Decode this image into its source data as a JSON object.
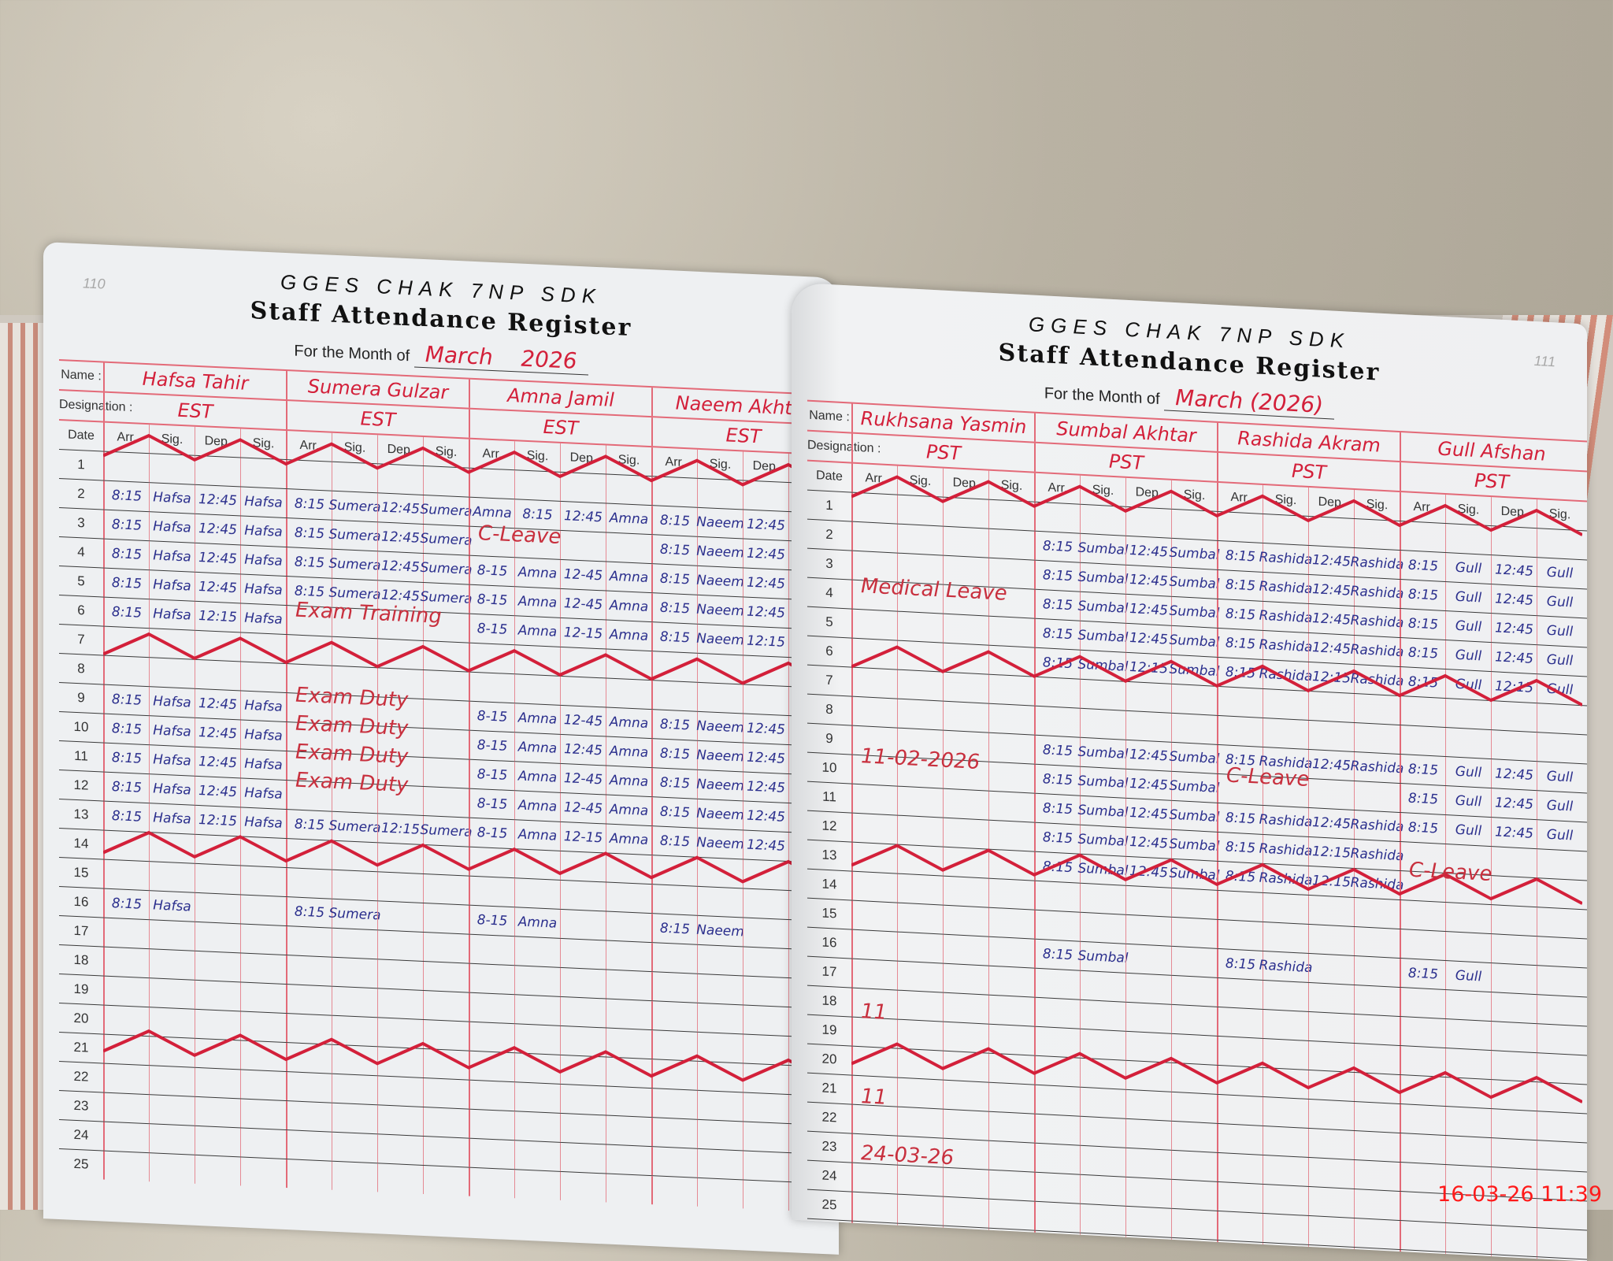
{
  "timestamp": "16-03-26  11:39",
  "pages": [
    {
      "page_number": "110",
      "school": "GGES CHAK 7NP SDK",
      "title": "Staff Attendance Register",
      "month_label": "For the Month of",
      "month": "March",
      "year": "2026",
      "name_label": "Name :",
      "designation_label": "Designation :",
      "date_label": "Date",
      "sub_headers": [
        "Arr.",
        "Sig.",
        "Dep.",
        "Sig."
      ],
      "staff": [
        {
          "name": "Hafsa Tahir",
          "designation": "EST"
        },
        {
          "name": "Sumera Gulzar",
          "designation": "EST"
        },
        {
          "name": "Amna Jamil",
          "designation": "EST"
        },
        {
          "name": "Naeem Akhtar",
          "designation": "EST"
        }
      ],
      "row_count": 25,
      "holiday_rows": [
        1,
        8,
        15,
        22
      ],
      "entries": [
        {
          "date": 2,
          "cells": [
            "8:15",
            "Hafsa",
            "12:45",
            "Hafsa",
            "8:15",
            "Sumera",
            "12:45",
            "Sumera",
            "Amna",
            "8:15",
            "12:45",
            "Amna",
            "8:15",
            "Naeem",
            "12:45",
            ""
          ]
        },
        {
          "date": 3,
          "cells": [
            "8:15",
            "Hafsa",
            "12:45",
            "Hafsa",
            "8:15",
            "Sumera",
            "12:45",
            "Sumera",
            "",
            "",
            "",
            "",
            "8:15",
            "Naeem",
            "12:45",
            ""
          ]
        },
        {
          "date": 4,
          "cells": [
            "8:15",
            "Hafsa",
            "12:45",
            "Hafsa",
            "8:15",
            "Sumera",
            "12:45",
            "Sumera",
            "8-15",
            "Amna",
            "12-45",
            "Amna",
            "8:15",
            "Naeem",
            "12:45",
            ""
          ]
        },
        {
          "date": 5,
          "cells": [
            "8:15",
            "Hafsa",
            "12:45",
            "Hafsa",
            "8:15",
            "Sumera",
            "12:45",
            "Sumera",
            "8-15",
            "Amna",
            "12-45",
            "Amna",
            "8:15",
            "Naeem",
            "12:45",
            ""
          ]
        },
        {
          "date": 6,
          "cells": [
            "8:15",
            "Hafsa",
            "12:15",
            "Hafsa",
            "",
            "",
            "",
            "",
            "8-15",
            "Amna",
            "12-15",
            "Amna",
            "8:15",
            "Naeem",
            "12:15",
            ""
          ]
        },
        {
          "date": 9,
          "cells": [
            "8:15",
            "Hafsa",
            "12:45",
            "Hafsa",
            "",
            "",
            "",
            "",
            "8-15",
            "Amna",
            "12-45",
            "Amna",
            "8:15",
            "Naeem",
            "12:45",
            ""
          ]
        },
        {
          "date": 10,
          "cells": [
            "8:15",
            "Hafsa",
            "12:45",
            "Hafsa",
            "",
            "",
            "",
            "",
            "8-15",
            "Amna",
            "12:45",
            "Amna",
            "8:15",
            "Naeem",
            "12:45",
            ""
          ]
        },
        {
          "date": 11,
          "cells": [
            "8:15",
            "Hafsa",
            "12:45",
            "Hafsa",
            "",
            "",
            "",
            "",
            "8-15",
            "Amna",
            "12-45",
            "Amna",
            "8:15",
            "Naeem",
            "12:45",
            ""
          ]
        },
        {
          "date": 12,
          "cells": [
            "8:15",
            "Hafsa",
            "12:45",
            "Hafsa",
            "",
            "",
            "",
            "",
            "8-15",
            "Amna",
            "12-45",
            "Amna",
            "8:15",
            "Naeem",
            "12:45",
            ""
          ]
        },
        {
          "date": 13,
          "cells": [
            "8:15",
            "Hafsa",
            "12:15",
            "Hafsa",
            "8:15",
            "Sumera",
            "12:15",
            "Sumera",
            "8-15",
            "Amna",
            "12-15",
            "Amna",
            "8:15",
            "Naeem",
            "12:45",
            ""
          ]
        },
        {
          "date": 16,
          "cells": [
            "8:15",
            "Hafsa",
            "",
            "",
            "8:15",
            "Sumera",
            "",
            "",
            "8-15",
            "Amna",
            "",
            "",
            "8:15",
            "Naeem",
            "",
            ""
          ]
        }
      ],
      "notes": [
        {
          "text": "C-Leave",
          "date": 3,
          "staff": 2,
          "color": "red"
        },
        {
          "text": "Exam Training",
          "date": 6,
          "staff": 1,
          "color": "red"
        },
        {
          "text": "Exam Duty",
          "date": 9,
          "staff": 1,
          "color": "red"
        },
        {
          "text": "Exam Duty",
          "date": 10,
          "staff": 1,
          "color": "red"
        },
        {
          "text": "Exam Duty",
          "date": 11,
          "staff": 1,
          "color": "red"
        },
        {
          "text": "Exam Duty",
          "date": 12,
          "staff": 1,
          "color": "red"
        }
      ]
    },
    {
      "page_number": "111",
      "school": "GGES CHAK 7NP SDK",
      "title": "Staff Attendance Register",
      "month_label": "For the Month of",
      "month": "March",
      "year": "(2026)",
      "name_label": "Name :",
      "designation_label": "Designation :",
      "date_label": "Date",
      "sub_headers": [
        "Arr.",
        "Sig.",
        "Dep.",
        "Sig."
      ],
      "staff": [
        {
          "name": "Rukhsana Yasmin",
          "designation": "PST"
        },
        {
          "name": "Sumbal Akhtar",
          "designation": "PST"
        },
        {
          "name": "Rashida Akram",
          "designation": "PST"
        },
        {
          "name": "Gull Afshan",
          "designation": "PST"
        }
      ],
      "row_count": 26,
      "holiday_rows": [
        1,
        7,
        14,
        21
      ],
      "entries": [
        {
          "date": 2,
          "cells": [
            "",
            "",
            "",
            "",
            "8:15",
            "Sumbal",
            "12:45",
            "Sumbal",
            "8:15",
            "Rashida",
            "12:45",
            "Rashida",
            "8:15",
            "Gull",
            "12:45",
            "Gull"
          ]
        },
        {
          "date": 3,
          "cells": [
            "",
            "",
            "",
            "",
            "8:15",
            "Sumbal",
            "12:45",
            "Sumbal",
            "8:15",
            "Rashida",
            "12:45",
            "Rashida",
            "8:15",
            "Gull",
            "12:45",
            "Gull"
          ]
        },
        {
          "date": 4,
          "cells": [
            "",
            "",
            "",
            "",
            "8:15",
            "Sumbal",
            "12:45",
            "Sumbal",
            "8:15",
            "Rashida",
            "12:45",
            "Rashida",
            "8:15",
            "Gull",
            "12:45",
            "Gull"
          ]
        },
        {
          "date": 5,
          "cells": [
            "",
            "",
            "",
            "",
            "8:15",
            "Sumbal",
            "12:45",
            "Sumbal",
            "8:15",
            "Rashida",
            "12:45",
            "Rashida",
            "8:15",
            "Gull",
            "12:45",
            "Gull"
          ]
        },
        {
          "date": 6,
          "cells": [
            "",
            "",
            "",
            "",
            "8:15",
            "Sumbal",
            "12:15",
            "Sumbal",
            "8:15",
            "Rashida",
            "12:15",
            "Rashida",
            "8:15",
            "Gull",
            "12:15",
            "Gull"
          ]
        },
        {
          "date": 9,
          "cells": [
            "",
            "",
            "",
            "",
            "8:15",
            "Sumbal",
            "12:45",
            "Sumbal",
            "8:15",
            "Rashida",
            "12:45",
            "Rashida",
            "8:15",
            "Gull",
            "12:45",
            "Gull"
          ]
        },
        {
          "date": 10,
          "cells": [
            "",
            "",
            "",
            "",
            "8:15",
            "Sumbal",
            "12:45",
            "Sumbal",
            "",
            "",
            "",
            "",
            "8:15",
            "Gull",
            "12:45",
            "Gull"
          ]
        },
        {
          "date": 11,
          "cells": [
            "",
            "",
            "",
            "",
            "8:15",
            "Sumbal",
            "12:45",
            "Sumbal",
            "8:15",
            "Rashida",
            "12:45",
            "Rashida",
            "8:15",
            "Gull",
            "12:45",
            "Gull"
          ]
        },
        {
          "date": 12,
          "cells": [
            "",
            "",
            "",
            "",
            "8:15",
            "Sumbal",
            "12:45",
            "Sumbal",
            "8:15",
            "Rashida",
            "12:15",
            "Rashida",
            "",
            "",
            "",
            ""
          ]
        },
        {
          "date": 13,
          "cells": [
            "",
            "",
            "",
            "",
            "8:15",
            "Sumbal",
            "12:45",
            "Sumbal",
            "8:15",
            "Rashida",
            "12:15",
            "Rashida",
            "",
            "",
            "",
            ""
          ]
        },
        {
          "date": 16,
          "cells": [
            "",
            "",
            "",
            "",
            "8:15",
            "Sumbal",
            "",
            "",
            "8:15",
            "Rashida",
            "",
            "",
            "8:15",
            "Gull",
            "",
            ""
          ]
        }
      ],
      "notes": [
        {
          "text": "Medical Leave",
          "date": 4,
          "staff": 0,
          "color": "red"
        },
        {
          "text": "11-02-2026",
          "date": 10,
          "staff": 0,
          "color": "red"
        },
        {
          "text": "C-Leave",
          "date": 10,
          "staff": 2,
          "color": "red"
        },
        {
          "text": "C-Leave",
          "date": 13,
          "staff": 3,
          "color": "red"
        },
        {
          "text": "11",
          "date": 19,
          "staff": 0,
          "color": "red"
        },
        {
          "text": "11",
          "date": 22,
          "staff": 0,
          "color": "red"
        },
        {
          "text": "24-03-26",
          "date": 24,
          "staff": 0,
          "color": "red"
        }
      ]
    }
  ]
}
